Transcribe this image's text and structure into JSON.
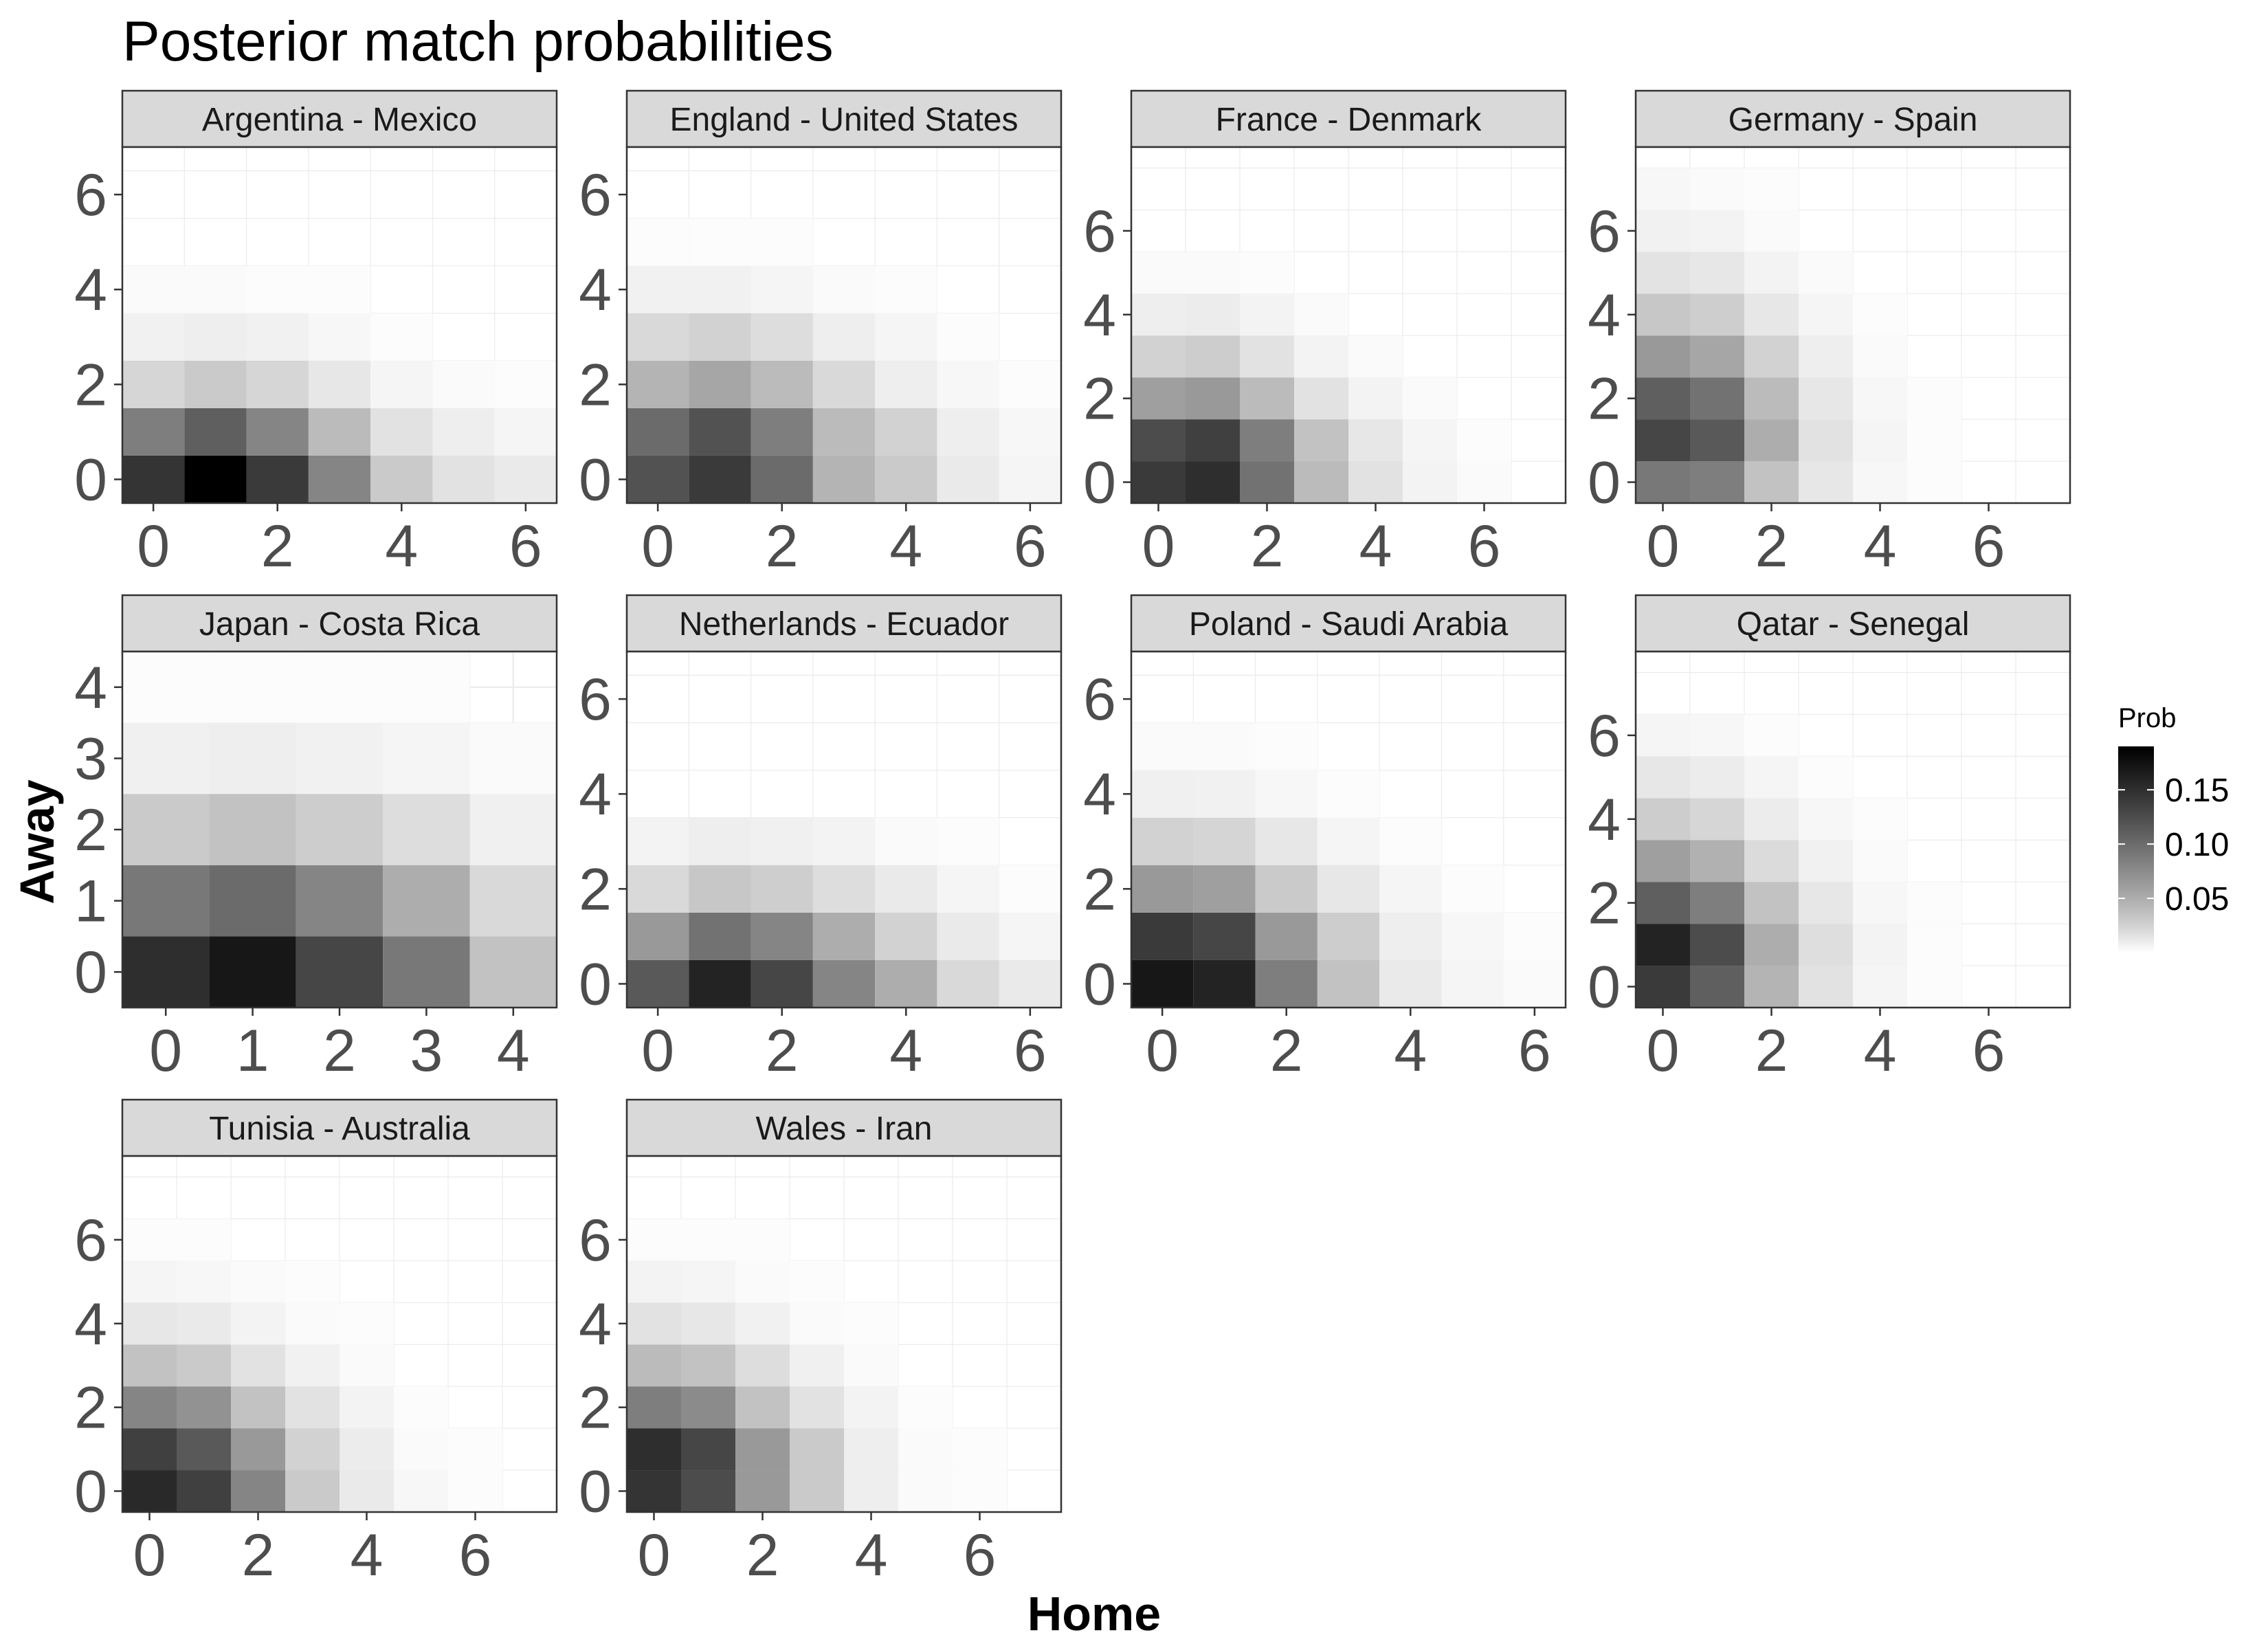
{
  "title": "Posterior match probabilities",
  "chart_data": {
    "type": "heatmap",
    "title": "Posterior match probabilities",
    "xlabel": "Home",
    "ylabel": "Away",
    "legend": {
      "title": "Prob",
      "position": "right",
      "ticks": [
        0.05,
        0.1,
        0.15
      ],
      "tick_labels": [
        "0.05",
        "0.10",
        "0.15"
      ],
      "range": [
        0,
        0.19
      ],
      "low_color": "#ffffff",
      "high_color": "#000000"
    },
    "grid": true,
    "facets": [
      {
        "label": "Argentina - Mexico",
        "xlim": [
          -0.5,
          6.5
        ],
        "ylim": [
          -0.5,
          7
        ],
        "xticks": [
          0,
          2,
          4,
          6
        ],
        "yticks": [
          0,
          2,
          4,
          6
        ],
        "probs": [
          [
            0.145,
            0.19,
            0.14,
            0.08,
            0.03,
            0.015,
            0.01
          ],
          [
            0.085,
            0.11,
            0.08,
            0.04,
            0.015,
            0.008,
            0.004
          ],
          [
            0.022,
            0.03,
            0.022,
            0.012,
            0.004,
            0.002,
            0.001
          ],
          [
            0.006,
            0.008,
            0.006,
            0.003,
            0.001,
            0,
            0
          ],
          [
            0.002,
            0.002,
            0.001,
            0.001,
            0,
            0,
            0
          ]
        ]
      },
      {
        "label": "England - United States",
        "xlim": [
          -0.5,
          6.5
        ],
        "ylim": [
          -0.5,
          7
        ],
        "xticks": [
          0,
          2,
          4,
          6
        ],
        "yticks": [
          0,
          2,
          4,
          6
        ],
        "probs": [
          [
            0.12,
            0.14,
            0.1,
            0.045,
            0.03,
            0.01,
            0.004
          ],
          [
            0.1,
            0.12,
            0.085,
            0.04,
            0.025,
            0.008,
            0.003
          ],
          [
            0.045,
            0.055,
            0.04,
            0.02,
            0.008,
            0.003,
            0.001
          ],
          [
            0.02,
            0.025,
            0.018,
            0.008,
            0.004,
            0.001,
            0
          ],
          [
            0.006,
            0.006,
            0.004,
            0.002,
            0.001,
            0,
            0
          ],
          [
            0.001,
            0.001,
            0.001,
            0,
            0,
            0,
            0
          ]
        ]
      },
      {
        "label": "France - Denmark",
        "xlim": [
          -0.5,
          7.5
        ],
        "ylim": [
          -0.5,
          8
        ],
        "xticks": [
          0,
          2,
          4,
          6
        ],
        "yticks": [
          0,
          2,
          4,
          6
        ],
        "probs": [
          [
            0.14,
            0.15,
            0.095,
            0.04,
            0.015,
            0.005,
            0.002
          ],
          [
            0.125,
            0.135,
            0.085,
            0.035,
            0.012,
            0.004,
            0.001
          ],
          [
            0.06,
            0.065,
            0.04,
            0.015,
            0.005,
            0.002,
            0
          ],
          [
            0.025,
            0.028,
            0.015,
            0.005,
            0.002,
            0,
            0
          ],
          [
            0.008,
            0.009,
            0.005,
            0.002,
            0,
            0,
            0
          ],
          [
            0.002,
            0.002,
            0.001,
            0,
            0,
            0,
            0
          ]
        ]
      },
      {
        "label": "Germany - Spain",
        "xlim": [
          -0.5,
          7.5
        ],
        "ylim": [
          -0.5,
          8
        ],
        "xticks": [
          0,
          2,
          4,
          6
        ],
        "yticks": [
          0,
          2,
          4,
          6
        ],
        "probs": [
          [
            0.09,
            0.085,
            0.035,
            0.012,
            0.003,
            0.001,
            0
          ],
          [
            0.13,
            0.115,
            0.05,
            0.015,
            0.004,
            0.001,
            0
          ],
          [
            0.11,
            0.095,
            0.04,
            0.012,
            0.003,
            0.001,
            0
          ],
          [
            0.065,
            0.055,
            0.025,
            0.008,
            0.002,
            0,
            0
          ],
          [
            0.032,
            0.027,
            0.012,
            0.004,
            0.001,
            0,
            0
          ],
          [
            0.014,
            0.012,
            0.005,
            0.002,
            0,
            0,
            0
          ],
          [
            0.006,
            0.005,
            0.002,
            0,
            0,
            0,
            0
          ],
          [
            0.003,
            0.002,
            0.001,
            0,
            0,
            0,
            0
          ]
        ]
      },
      {
        "label": "Japan - Costa Rica",
        "xlim": [
          -0.5,
          4.5
        ],
        "ylim": [
          -0.5,
          4.5
        ],
        "xticks": [
          0,
          1,
          2,
          3,
          4
        ],
        "yticks": [
          0,
          1,
          2,
          3,
          4
        ],
        "probs": [
          [
            0.15,
            0.17,
            0.13,
            0.09,
            0.035
          ],
          [
            0.09,
            0.1,
            0.08,
            0.05,
            0.02
          ],
          [
            0.03,
            0.035,
            0.028,
            0.018,
            0.007
          ],
          [
            0.007,
            0.008,
            0.006,
            0.004,
            0.002
          ],
          [
            0.001,
            0.001,
            0.001,
            0.001,
            0
          ]
        ]
      },
      {
        "label": "Netherlands - Ecuador",
        "xlim": [
          -0.5,
          6.5
        ],
        "ylim": [
          -0.5,
          7
        ],
        "xticks": [
          0,
          2,
          4,
          6
        ],
        "yticks": [
          0,
          2,
          4,
          6
        ],
        "probs": [
          [
            0.115,
            0.16,
            0.13,
            0.08,
            0.05,
            0.02,
            0.01
          ],
          [
            0.065,
            0.095,
            0.08,
            0.05,
            0.025,
            0.01,
            0.004
          ],
          [
            0.02,
            0.032,
            0.027,
            0.018,
            0.01,
            0.004,
            0.001
          ],
          [
            0.005,
            0.008,
            0.007,
            0.005,
            0.002,
            0.001,
            0
          ]
        ]
      },
      {
        "label": "Poland - Saudi Arabia",
        "xlim": [
          -0.5,
          6.5
        ],
        "ylim": [
          -0.5,
          7
        ],
        "xticks": [
          0,
          2,
          4,
          6
        ],
        "yticks": [
          0,
          2,
          4,
          6
        ],
        "probs": [
          [
            0.17,
            0.16,
            0.085,
            0.035,
            0.01,
            0.004,
            0.002
          ],
          [
            0.14,
            0.13,
            0.065,
            0.028,
            0.008,
            0.003,
            0.001
          ],
          [
            0.065,
            0.06,
            0.03,
            0.012,
            0.004,
            0.001,
            0
          ],
          [
            0.025,
            0.023,
            0.012,
            0.004,
            0.001,
            0,
            0
          ],
          [
            0.007,
            0.006,
            0.003,
            0.001,
            0,
            0,
            0
          ],
          [
            0.002,
            0.002,
            0.001,
            0,
            0,
            0,
            0
          ]
        ]
      },
      {
        "label": "Qatar - Senegal",
        "xlim": [
          -0.5,
          7.5
        ],
        "ylim": [
          -0.5,
          8
        ],
        "xticks": [
          0,
          2,
          4,
          6
        ],
        "yticks": [
          0,
          2,
          4,
          6
        ],
        "probs": [
          [
            0.14,
            0.11,
            0.045,
            0.015,
            0.004,
            0.001,
            0
          ],
          [
            0.16,
            0.125,
            0.05,
            0.017,
            0.005,
            0.001,
            0
          ],
          [
            0.11,
            0.085,
            0.035,
            0.012,
            0.003,
            0.001,
            0
          ],
          [
            0.06,
            0.047,
            0.019,
            0.006,
            0.002,
            0,
            0
          ],
          [
            0.028,
            0.022,
            0.009,
            0.003,
            0.001,
            0,
            0
          ],
          [
            0.012,
            0.009,
            0.004,
            0.001,
            0,
            0,
            0
          ],
          [
            0.004,
            0.003,
            0.001,
            0,
            0,
            0,
            0
          ]
        ]
      },
      {
        "label": "Tunisia - Australia",
        "xlim": [
          -0.5,
          7.5
        ],
        "ylim": [
          -0.5,
          8
        ],
        "xticks": [
          0,
          2,
          4,
          6
        ],
        "yticks": [
          0,
          2,
          4,
          6
        ],
        "probs": [
          [
            0.155,
            0.135,
            0.08,
            0.03,
            0.01,
            0.003,
            0.001
          ],
          [
            0.135,
            0.115,
            0.065,
            0.025,
            0.009,
            0.002,
            0.001
          ],
          [
            0.08,
            0.07,
            0.035,
            0.015,
            0.005,
            0.001,
            0
          ],
          [
            0.035,
            0.03,
            0.015,
            0.006,
            0.002,
            0,
            0
          ],
          [
            0.012,
            0.01,
            0.005,
            0.002,
            0.001,
            0,
            0
          ],
          [
            0.004,
            0.003,
            0.002,
            0.001,
            0,
            0,
            0
          ],
          [
            0.001,
            0.001,
            0,
            0,
            0,
            0,
            0
          ]
        ]
      },
      {
        "label": "Wales - Iran",
        "xlim": [
          -0.5,
          7.5
        ],
        "ylim": [
          -0.5,
          8
        ],
        "xticks": [
          0,
          2,
          4,
          6
        ],
        "yticks": [
          0,
          2,
          4,
          6
        ],
        "probs": [
          [
            0.145,
            0.125,
            0.065,
            0.03,
            0.008,
            0.002,
            0.001
          ],
          [
            0.15,
            0.13,
            0.065,
            0.03,
            0.008,
            0.002,
            0.001
          ],
          [
            0.085,
            0.075,
            0.035,
            0.015,
            0.005,
            0.001,
            0
          ],
          [
            0.04,
            0.035,
            0.018,
            0.007,
            0.002,
            0,
            0
          ],
          [
            0.015,
            0.012,
            0.006,
            0.002,
            0.001,
            0,
            0
          ],
          [
            0.005,
            0.004,
            0.002,
            0.001,
            0,
            0,
            0
          ],
          [
            0.001,
            0.001,
            0.001,
            0,
            0,
            0,
            0
          ]
        ]
      }
    ]
  }
}
